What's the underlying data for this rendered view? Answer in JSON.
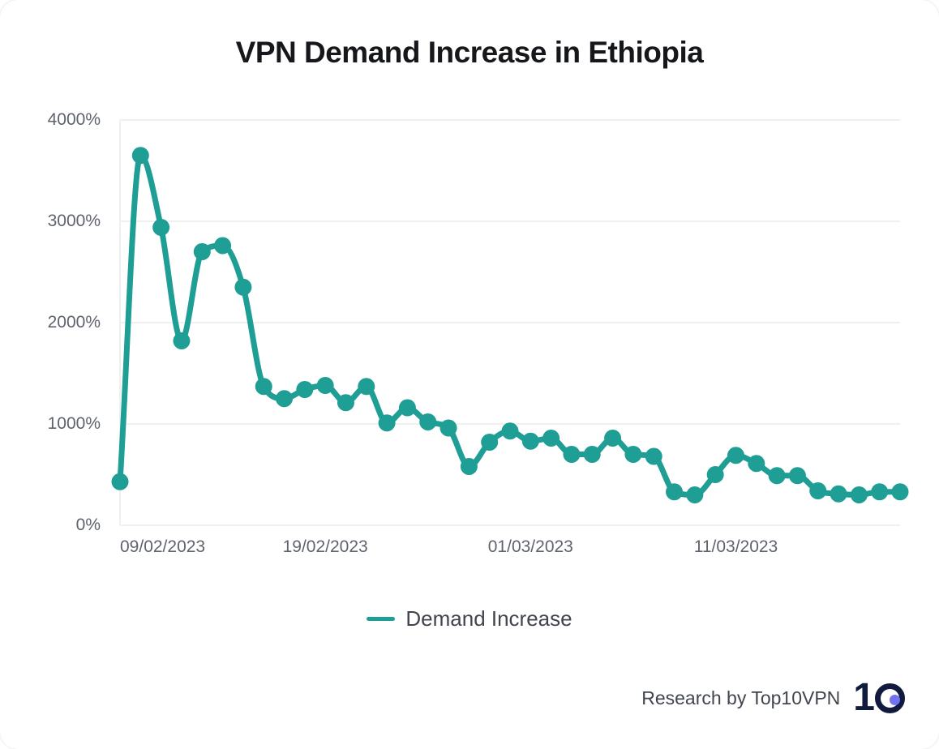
{
  "header": {
    "title": "VPN Demand Increase in Ethiopia"
  },
  "legend": {
    "label": "Demand Increase"
  },
  "footer": {
    "text": "Research by Top10VPN",
    "logo_text": "1",
    "logo_navy": "#101B3E",
    "logo_dot": "#7173F0"
  },
  "colors": {
    "accent": "#1E9E94",
    "grid": "#F0F0F1",
    "axis_text": "#5E636D"
  },
  "chart_data": {
    "type": "line",
    "title": "VPN Demand Increase in Ethiopia",
    "xlabel": "",
    "ylabel": "",
    "unit": "%",
    "ylim": [
      0,
      4000
    ],
    "grid": "horizontal",
    "legend_position": "bottom",
    "line_color": "#1E9E94",
    "grid_color": "#F0F0F1",
    "x": [
      "09/02/2023",
      "10/02/2023",
      "11/02/2023",
      "12/02/2023",
      "13/02/2023",
      "14/02/2023",
      "15/02/2023",
      "16/02/2023",
      "17/02/2023",
      "18/02/2023",
      "19/02/2023",
      "20/02/2023",
      "21/02/2023",
      "22/02/2023",
      "23/02/2023",
      "24/02/2023",
      "25/02/2023",
      "26/02/2023",
      "27/02/2023",
      "28/02/2023",
      "01/03/2023",
      "02/03/2023",
      "03/03/2023",
      "04/03/2023",
      "05/03/2023",
      "06/03/2023",
      "07/03/2023",
      "08/03/2023",
      "09/03/2023",
      "10/03/2023",
      "11/03/2023",
      "12/03/2023",
      "13/03/2023",
      "14/03/2023",
      "15/03/2023",
      "16/03/2023",
      "17/03/2023",
      "18/03/2023",
      "19/03/2023"
    ],
    "series": [
      {
        "name": "Demand Increase",
        "values": [
          430,
          3650,
          2940,
          1820,
          2700,
          2760,
          2350,
          1370,
          1250,
          1340,
          1380,
          1210,
          1370,
          1010,
          1160,
          1020,
          960,
          580,
          820,
          930,
          830,
          860,
          700,
          700,
          860,
          700,
          680,
          330,
          300,
          500,
          690,
          610,
          490,
          490,
          340,
          310,
          300,
          330,
          330
        ]
      }
    ],
    "y_ticks": [
      {
        "label": "4000%",
        "value": 4000
      },
      {
        "label": "3000%",
        "value": 3000
      },
      {
        "label": "2000%",
        "value": 2000
      },
      {
        "label": "1000%",
        "value": 1000
      },
      {
        "label": "0%",
        "value": 0
      }
    ],
    "x_tick_labels": [
      {
        "label": "09/02/2023",
        "index": 0,
        "align": "left"
      },
      {
        "label": "19/02/2023",
        "index": 10,
        "align": "center"
      },
      {
        "label": "01/03/2023",
        "index": 20,
        "align": "center"
      },
      {
        "label": "11/03/2023",
        "index": 30,
        "align": "center"
      }
    ]
  }
}
